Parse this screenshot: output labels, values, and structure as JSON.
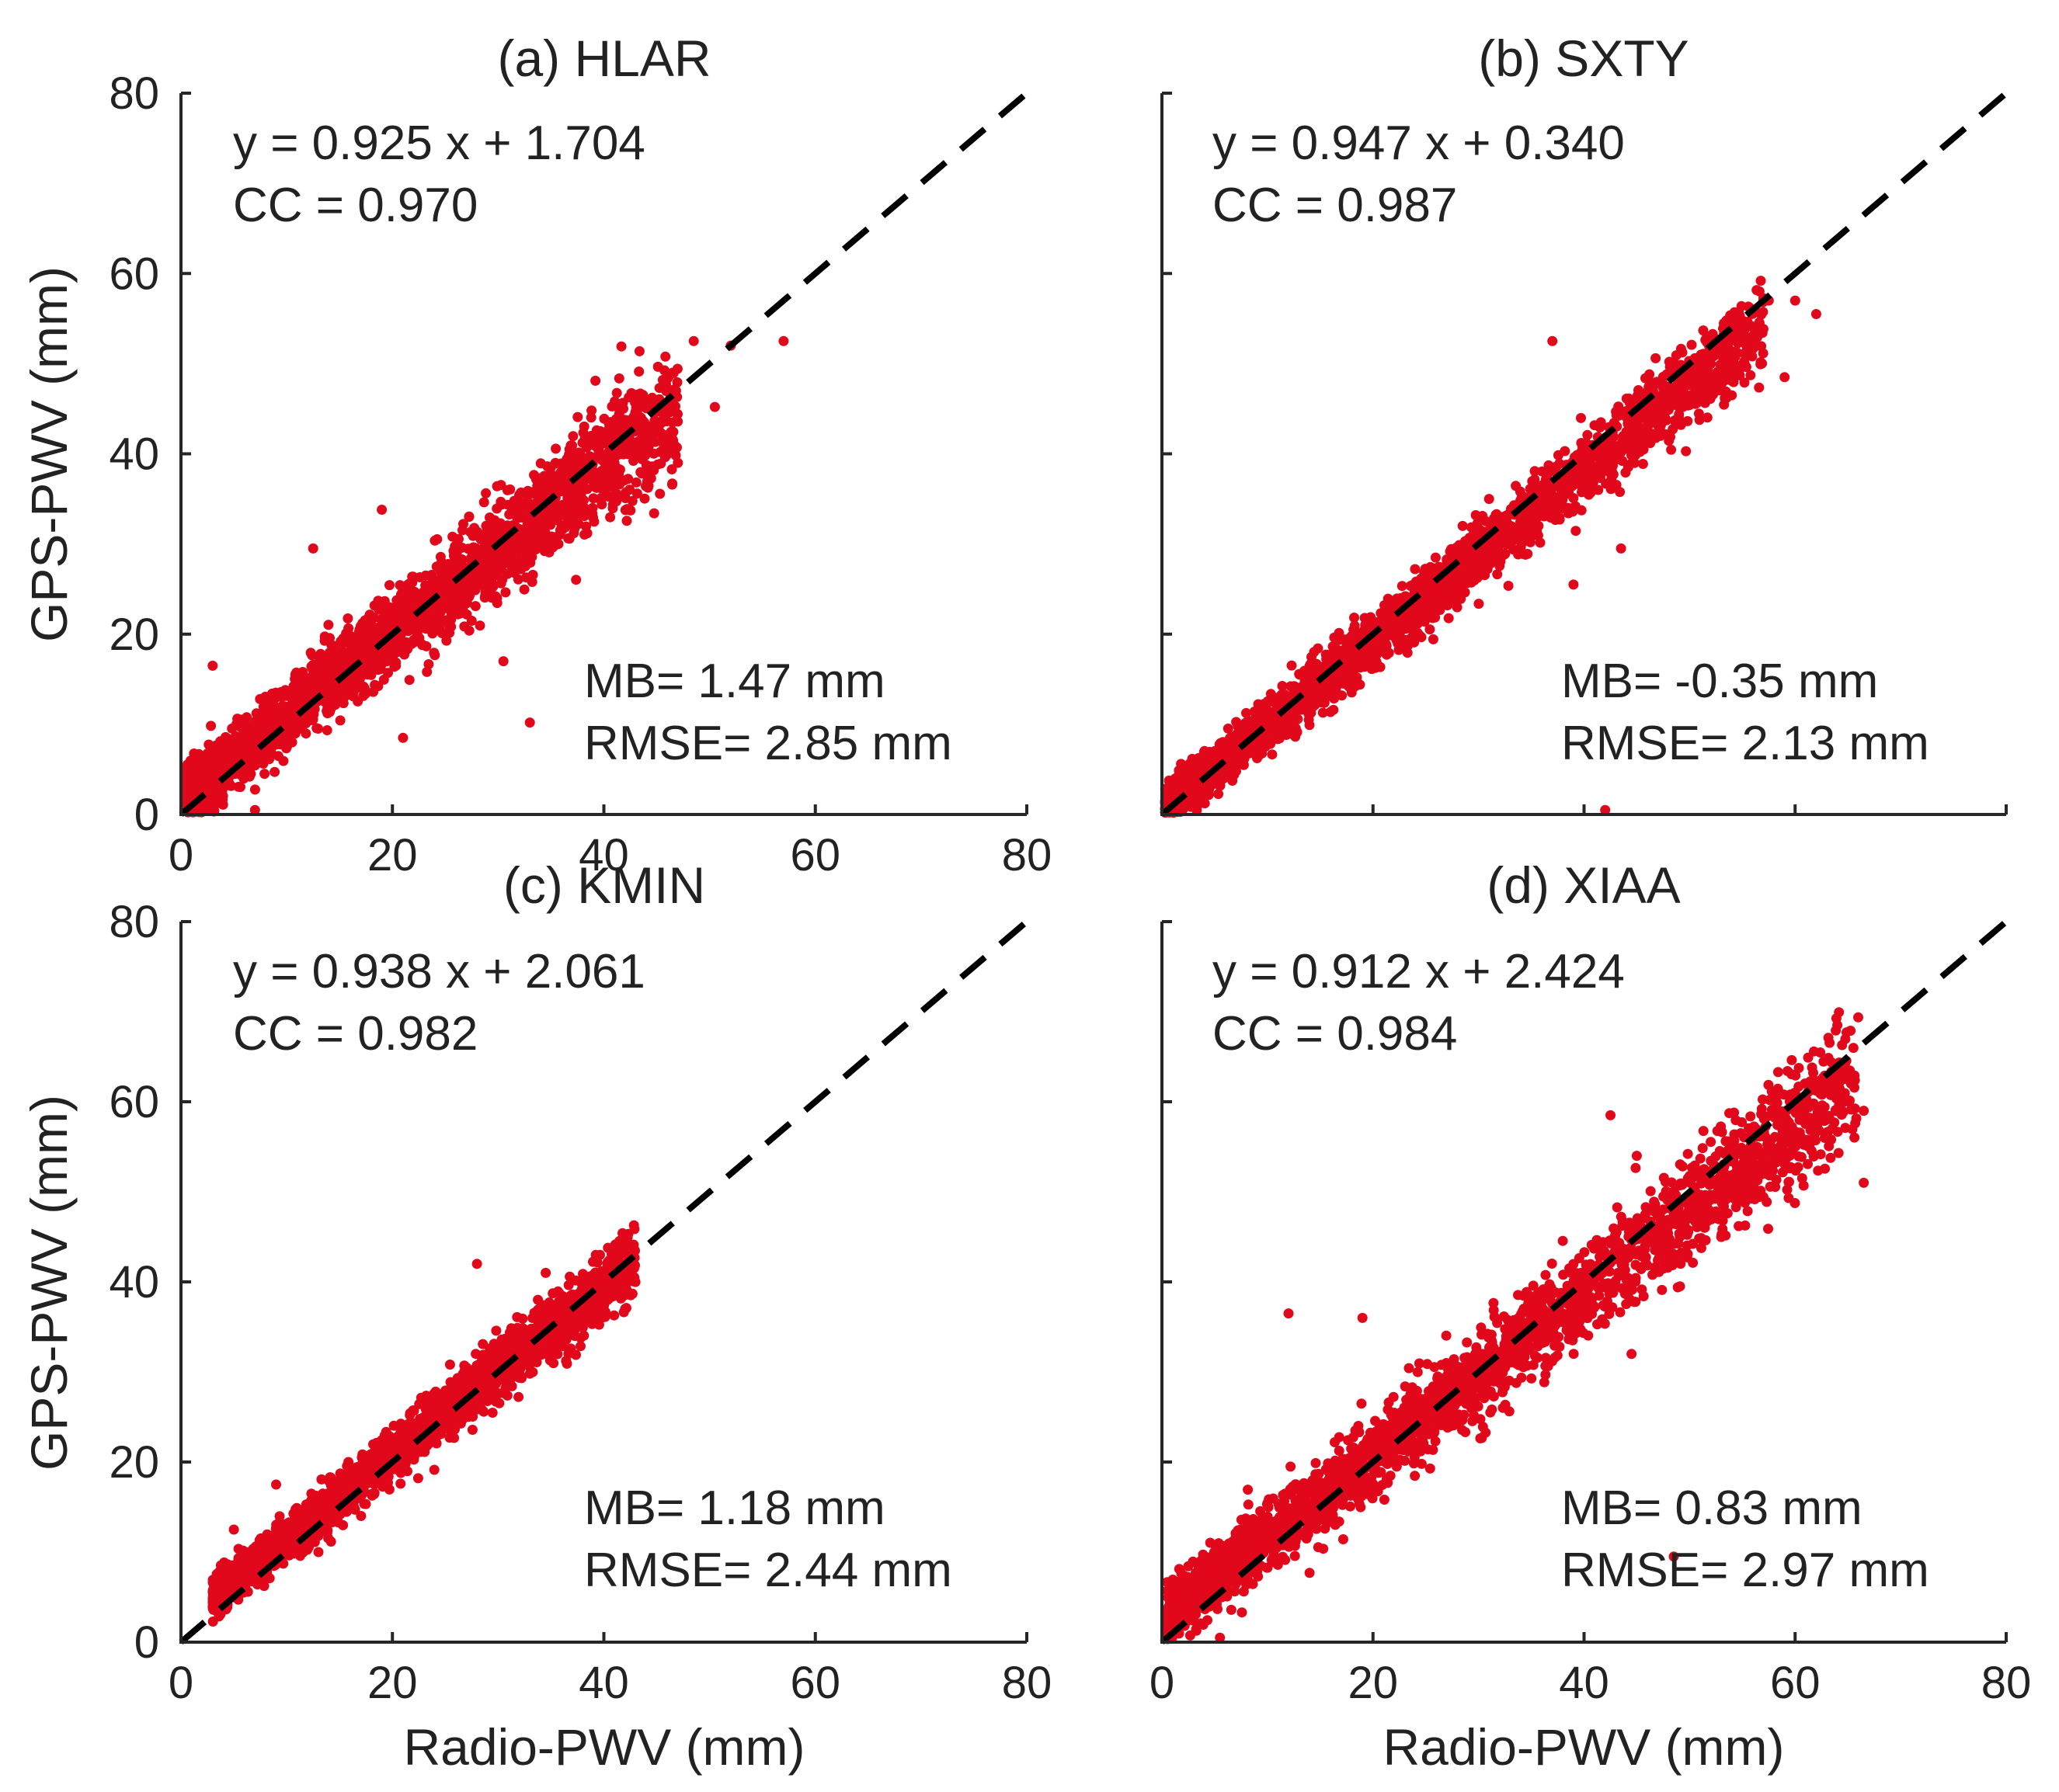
{
  "chart_data": [
    {
      "type": "scatter",
      "title": "(a) HLAR",
      "xlabel": "",
      "ylabel": "GPS-PWV (mm)",
      "xlim": [
        0,
        80
      ],
      "ylim": [
        0,
        80
      ],
      "xticks": [
        "0",
        "20",
        "40",
        "60",
        "80"
      ],
      "yticks": [
        "0",
        "20",
        "40",
        "60",
        "80"
      ],
      "fit_equation": "y = 0.925 x + 1.704",
      "cc": "CC = 0.970",
      "mb": "MB= 1.47 mm",
      "rmse": "RMSE= 2.85 mm",
      "fit": {
        "slope": 0.925,
        "intercept": 1.704
      },
      "scatter_spread": 2.85,
      "x_range": [
        0.5,
        47
      ],
      "series_color": "#e2081b",
      "outliers": [
        [
          46.5,
          49.0
        ],
        [
          48.5,
          52.5
        ],
        [
          52.0,
          52.0
        ],
        [
          57.0,
          52.5
        ],
        [
          50.5,
          45.2
        ],
        [
          47.0,
          39.0
        ],
        [
          43.0,
          42.5
        ],
        [
          33.0,
          10.2
        ],
        [
          30.5,
          17.0
        ],
        [
          12.5,
          29.5
        ],
        [
          19.0,
          33.8
        ],
        [
          7.0,
          0.5
        ],
        [
          3.0,
          16.5
        ],
        [
          21.0,
          8.5
        ]
      ]
    },
    {
      "type": "scatter",
      "title": "(b) SXTY",
      "xlabel": "",
      "ylabel": "",
      "xlim": [
        0,
        80
      ],
      "ylim": [
        0,
        80
      ],
      "xticks": [],
      "yticks": [],
      "fit_equation": "y = 0.947 x + 0.340",
      "cc": "CC = 0.987",
      "mb": "MB= -0.35 mm",
      "rmse": "RMSE= 2.13 mm",
      "fit": {
        "slope": 0.947,
        "intercept": 0.34
      },
      "scatter_spread": 2.13,
      "x_range": [
        0.3,
        57
      ],
      "series_color": "#e2081b",
      "outliers": [
        [
          42.0,
          0.5
        ],
        [
          43.5,
          29.5
        ],
        [
          37.0,
          52.5
        ],
        [
          39.0,
          25.5
        ],
        [
          31.0,
          35.0
        ],
        [
          22.0,
          22.5
        ],
        [
          53.5,
          52.5
        ],
        [
          57.5,
          57.0
        ],
        [
          60.0,
          57.0
        ],
        [
          62.0,
          55.5
        ],
        [
          59.0,
          48.5
        ],
        [
          28.5,
          32.0
        ]
      ]
    },
    {
      "type": "scatter",
      "title": "(c) KMIN",
      "xlabel": "Radio-PWV (mm)",
      "ylabel": "GPS-PWV (mm)",
      "xlim": [
        0,
        80
      ],
      "ylim": [
        0,
        80
      ],
      "xticks": [
        "0",
        "20",
        "40",
        "60",
        "80"
      ],
      "yticks": [
        "0",
        "20",
        "40",
        "60",
        "80"
      ],
      "fit_equation": "y = 0.938 x + 2.061",
      "cc": "CC = 0.982",
      "mb": "MB= 1.18 mm",
      "rmse": "RMSE= 2.44 mm",
      "fit": {
        "slope": 0.938,
        "intercept": 2.061
      },
      "scatter_spread": 1.7,
      "x_range": [
        3,
        43
      ],
      "series_color": "#e2081b",
      "outliers": [
        [
          28.0,
          42.0
        ],
        [
          34.5,
          41.0
        ],
        [
          42.5,
          43.0
        ],
        [
          23.0,
          21.5
        ],
        [
          13.0,
          10.0
        ],
        [
          5.0,
          12.5
        ],
        [
          9.0,
          17.5
        ]
      ]
    },
    {
      "type": "scatter",
      "title": "(d) XIAA",
      "xlabel": "Radio-PWV (mm)",
      "ylabel": "",
      "xlim": [
        0,
        80
      ],
      "ylim": [
        0,
        80
      ],
      "xticks": [
        "0",
        "20",
        "40",
        "60",
        "80"
      ],
      "yticks": [],
      "fit_equation": "y = 0.912 x + 2.424",
      "cc": "CC = 0.984",
      "mb": "MB= 0.83 mm",
      "rmse": "RMSE= 2.97 mm",
      "fit": {
        "slope": 0.912,
        "intercept": 2.424
      },
      "scatter_spread": 2.97,
      "x_range": [
        0.5,
        66
      ],
      "series_color": "#e2081b",
      "outliers": [
        [
          64.0,
          68.5
        ],
        [
          42.5,
          58.5
        ],
        [
          45.0,
          54.0
        ],
        [
          12.0,
          36.5
        ],
        [
          19.0,
          36.0
        ],
        [
          48.5,
          9.5
        ],
        [
          44.5,
          32.0
        ],
        [
          66.5,
          59.0
        ],
        [
          66.5,
          51.0
        ],
        [
          65.0,
          62.5
        ],
        [
          5.5,
          0.5
        ],
        [
          60.0,
          61.0
        ]
      ]
    }
  ]
}
